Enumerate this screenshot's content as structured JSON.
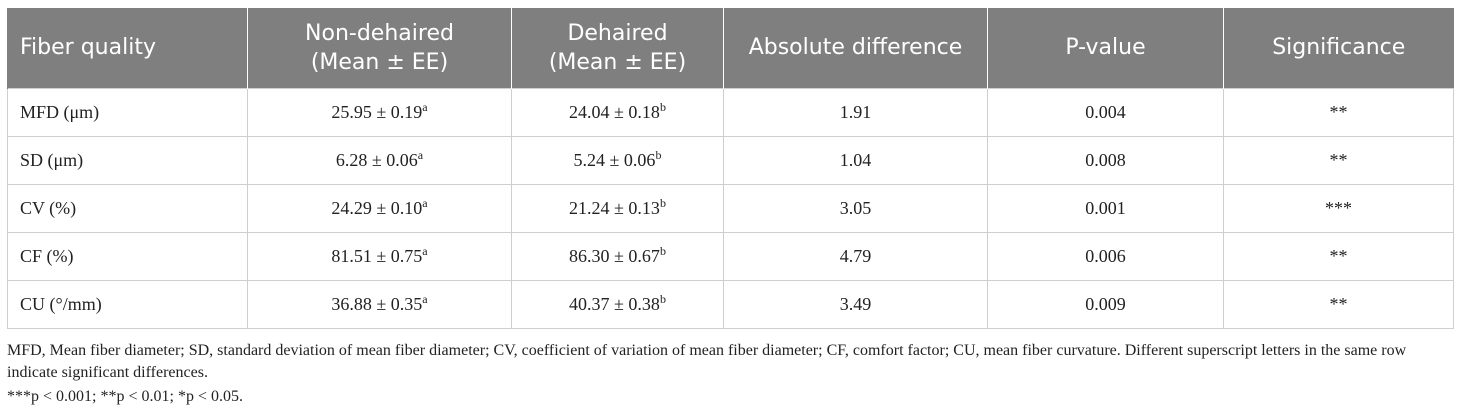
{
  "table": {
    "headers": [
      {
        "line1": "Fiber quality",
        "line2": ""
      },
      {
        "line1": "Non-dehaired",
        "line2": "(Mean ± EE)"
      },
      {
        "line1": "Dehaired",
        "line2": "(Mean ± EE)"
      },
      {
        "line1": "Absolute difference",
        "line2": ""
      },
      {
        "line1": "P-value",
        "line2": ""
      },
      {
        "line1": "Significance",
        "line2": ""
      }
    ],
    "rows": [
      {
        "fiber": "MFD (μm)",
        "non_dehaired": "25.95 ± 0.19",
        "non_dehaired_sup": "a",
        "dehaired": "24.04 ± 0.18",
        "dehaired_sup": "b",
        "difference": "1.91",
        "p_value": "0.004",
        "significance": "**"
      },
      {
        "fiber": "SD (μm)",
        "non_dehaired": "6.28 ± 0.06",
        "non_dehaired_sup": "a",
        "dehaired": "5.24 ± 0.06",
        "dehaired_sup": "b",
        "difference": "1.04",
        "p_value": "0.008",
        "significance": "**"
      },
      {
        "fiber": "CV (%)",
        "non_dehaired": "24.29 ± 0.10",
        "non_dehaired_sup": "a",
        "dehaired": "21.24 ± 0.13",
        "dehaired_sup": "b",
        "difference": "3.05",
        "p_value": "0.001",
        "significance": "***"
      },
      {
        "fiber": "CF (%)",
        "non_dehaired": "81.51 ± 0.75",
        "non_dehaired_sup": "a",
        "dehaired": "86.30 ± 0.67",
        "dehaired_sup": "b",
        "difference": "4.79",
        "p_value": "0.006",
        "significance": "**"
      },
      {
        "fiber": "CU (°/mm)",
        "non_dehaired": "36.88 ± 0.35",
        "non_dehaired_sup": "a",
        "dehaired": "40.37 ± 0.38",
        "dehaired_sup": "b",
        "difference": "3.49",
        "p_value": "0.009",
        "significance": "**"
      }
    ]
  },
  "footnotes": {
    "abbreviations": "MFD, Mean fiber diameter; SD, standard deviation of mean fiber diameter; CV, coefficient of variation of mean fiber diameter; CF, comfort factor; CU, mean fiber curvature. Different superscript letters in the same row indicate significant differences.",
    "significance_levels": "***p < 0.001; **p < 0.01; *p < 0.05."
  },
  "colors": {
    "header_background": "#7f7f7f",
    "header_text": "#ffffff",
    "grid_line": "#cfcfcf",
    "body_text": "#222222"
  }
}
